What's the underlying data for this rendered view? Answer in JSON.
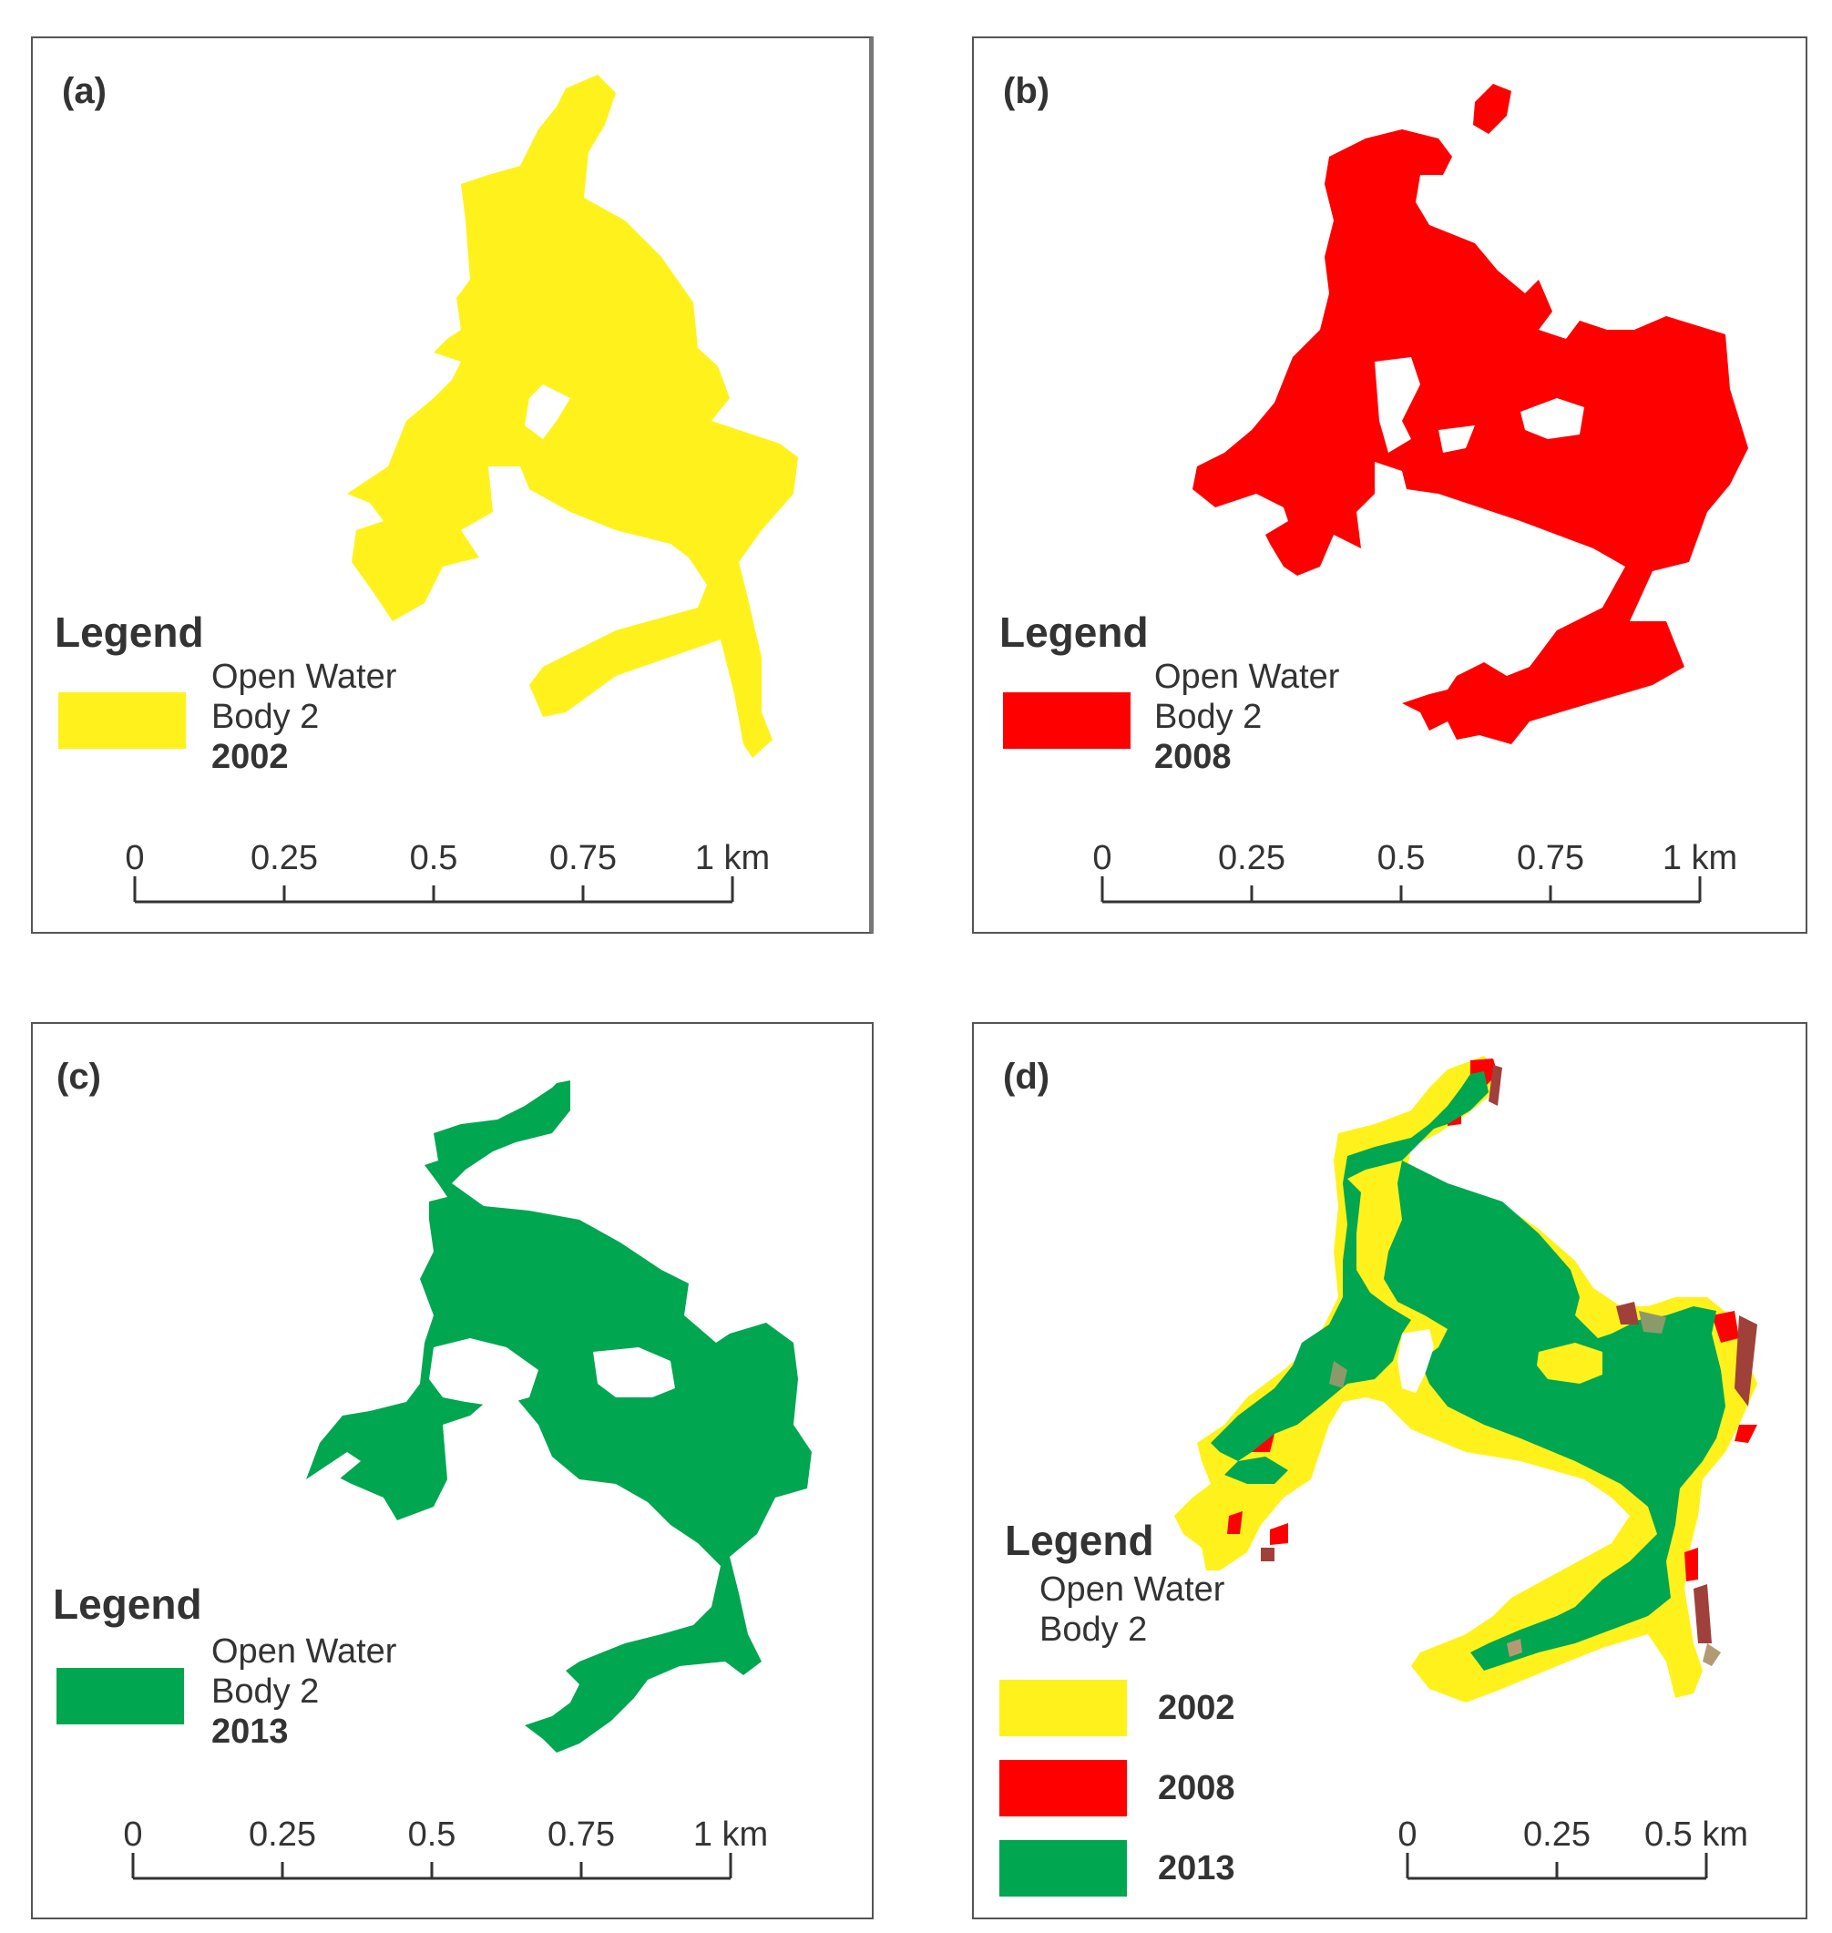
{
  "colors": {
    "y2002": "#fff21c",
    "y2008": "#ff0000",
    "y2013": "#00a650",
    "olive": "#8c9a6a",
    "brown": "#a0403a",
    "tan": "#b49a74",
    "frame": "#555555",
    "text": "#333333"
  },
  "panels": [
    {
      "tag": "(a)",
      "legend_title": "Legend",
      "legend_line1": "Open Water",
      "legend_line2": "Body 2",
      "year": "2002",
      "scale_ticks": [
        "0",
        "0.25",
        "0.5",
        "0.75",
        "1 km"
      ]
    },
    {
      "tag": "(b)",
      "legend_title": "Legend",
      "legend_line1": "Open Water",
      "legend_line2": "Body 2",
      "year": "2008",
      "scale_ticks": [
        "0",
        "0.25",
        "0.5",
        "0.75",
        "1 km"
      ]
    },
    {
      "tag": "(c)",
      "legend_title": "Legend",
      "legend_line1": "Open Water",
      "legend_line2": "Body 2",
      "year": "2013",
      "scale_ticks": [
        "0",
        "0.25",
        "0.5",
        "0.75",
        "1 km"
      ]
    },
    {
      "tag": "(d)",
      "legend_title": "Legend",
      "legend_line1": "Open Water",
      "legend_line2": "Body 2",
      "years": [
        "2002",
        "2008",
        "2013"
      ],
      "scale_ticks": [
        "0",
        "0.25",
        "0.5 km"
      ]
    }
  ]
}
